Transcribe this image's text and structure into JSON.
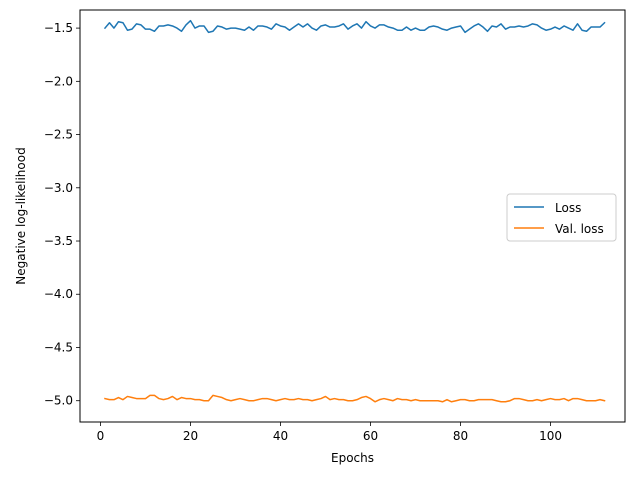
{
  "chart_data": {
    "type": "line",
    "xlabel": "Epochs",
    "ylabel": "Negative log-likelihood",
    "xlim": [
      -4.55,
      116.55
    ],
    "ylim": [
      -5.2,
      -1.33
    ],
    "xticks": [
      0,
      20,
      40,
      60,
      80,
      100
    ],
    "yticks": [
      -1.5,
      -2.0,
      -2.5,
      -3.0,
      -3.5,
      -4.0,
      -4.5,
      -5.0
    ],
    "xtick_labels": [
      "0",
      "20",
      "40",
      "60",
      "80",
      "100"
    ],
    "ytick_labels": [
      "−1.5",
      "−2.0",
      "−2.5",
      "−3.0",
      "−3.5",
      "−4.0",
      "−4.5",
      "−5.0"
    ],
    "legend_position": "center-right",
    "grid": false,
    "x_start": 1,
    "series": [
      {
        "name": "Loss",
        "color": "#1f77b4",
        "values": [
          -1.5,
          -1.45,
          -1.5,
          -1.44,
          -1.45,
          -1.52,
          -1.51,
          -1.46,
          -1.47,
          -1.51,
          -1.51,
          -1.53,
          -1.48,
          -1.48,
          -1.47,
          -1.48,
          -1.5,
          -1.53,
          -1.47,
          -1.43,
          -1.5,
          -1.48,
          -1.48,
          -1.54,
          -1.53,
          -1.48,
          -1.49,
          -1.51,
          -1.5,
          -1.5,
          -1.51,
          -1.52,
          -1.49,
          -1.52,
          -1.48,
          -1.48,
          -1.49,
          -1.51,
          -1.46,
          -1.48,
          -1.49,
          -1.52,
          -1.49,
          -1.46,
          -1.49,
          -1.46,
          -1.5,
          -1.52,
          -1.48,
          -1.47,
          -1.49,
          -1.49,
          -1.48,
          -1.46,
          -1.51,
          -1.48,
          -1.46,
          -1.5,
          -1.44,
          -1.48,
          -1.5,
          -1.47,
          -1.47,
          -1.49,
          -1.5,
          -1.52,
          -1.52,
          -1.49,
          -1.52,
          -1.5,
          -1.52,
          -1.52,
          -1.49,
          -1.48,
          -1.49,
          -1.51,
          -1.52,
          -1.5,
          -1.49,
          -1.48,
          -1.54,
          -1.51,
          -1.48,
          -1.46,
          -1.49,
          -1.53,
          -1.48,
          -1.49,
          -1.46,
          -1.51,
          -1.49,
          -1.49,
          -1.48,
          -1.49,
          -1.48,
          -1.46,
          -1.47,
          -1.5,
          -1.52,
          -1.51,
          -1.49,
          -1.51,
          -1.48,
          -1.5,
          -1.52,
          -1.46,
          -1.52,
          -1.53,
          -1.49,
          -1.49,
          -1.49,
          -1.45
        ]
      },
      {
        "name": "Val. loss",
        "color": "#ff7f0e",
        "values": [
          -4.98,
          -4.99,
          -4.99,
          -4.97,
          -4.99,
          -4.96,
          -4.97,
          -4.98,
          -4.98,
          -4.98,
          -4.95,
          -4.95,
          -4.98,
          -4.99,
          -4.98,
          -4.96,
          -4.99,
          -4.97,
          -4.98,
          -4.98,
          -4.99,
          -4.99,
          -5.0,
          -5.0,
          -4.95,
          -4.96,
          -4.97,
          -4.99,
          -5.0,
          -4.99,
          -4.98,
          -4.99,
          -5.0,
          -5.0,
          -4.99,
          -4.98,
          -4.98,
          -4.99,
          -5.0,
          -4.99,
          -4.98,
          -4.99,
          -4.99,
          -4.98,
          -4.99,
          -4.99,
          -5.0,
          -4.99,
          -4.98,
          -4.96,
          -4.99,
          -4.98,
          -4.99,
          -4.99,
          -5.0,
          -5.0,
          -4.99,
          -4.97,
          -4.96,
          -4.98,
          -5.01,
          -4.99,
          -4.98,
          -4.99,
          -5.0,
          -4.98,
          -4.99,
          -4.99,
          -5.0,
          -4.99,
          -5.0,
          -5.0,
          -5.0,
          -5.0,
          -5.0,
          -5.01,
          -4.99,
          -5.01,
          -5.0,
          -4.99,
          -4.99,
          -5.0,
          -5.0,
          -4.99,
          -4.99,
          -4.99,
          -4.99,
          -5.0,
          -5.01,
          -5.01,
          -5.0,
          -4.98,
          -4.98,
          -4.99,
          -5.0,
          -5.0,
          -4.99,
          -5.0,
          -4.99,
          -4.98,
          -4.99,
          -4.99,
          -4.98,
          -5.0,
          -4.98,
          -4.98,
          -4.99,
          -5.0,
          -5.0,
          -5.0,
          -4.99,
          -5.0
        ]
      }
    ]
  }
}
